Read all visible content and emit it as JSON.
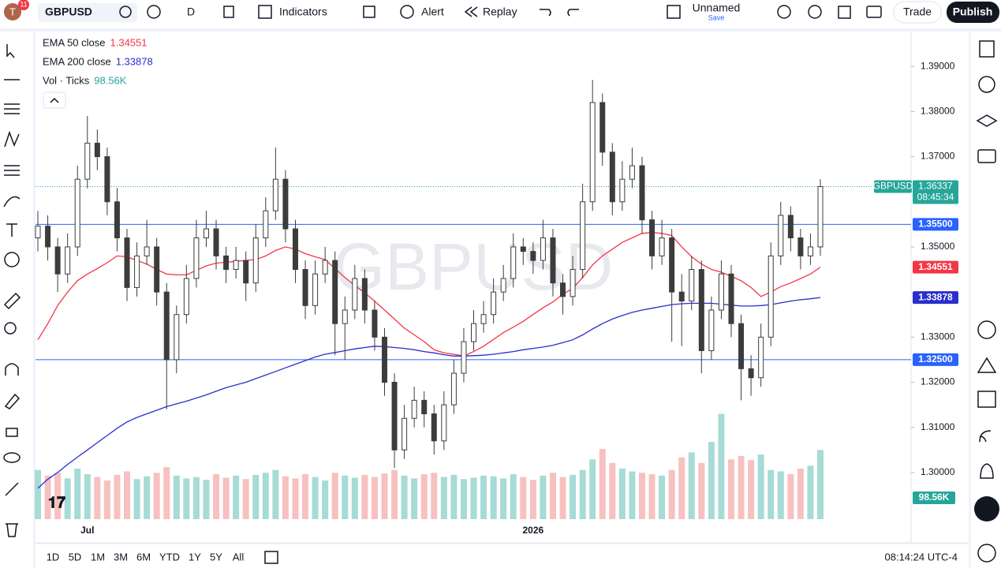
{
  "toolbar": {
    "avatar": "T",
    "badge": "11",
    "symbol": "GBPUSD",
    "interval": "D",
    "indicators": "Indicators",
    "alert": "Alert",
    "replay": "Replay",
    "layout_name": "Unnamed",
    "layout_status": "Save",
    "trade": "Trade",
    "publish": "Publish"
  },
  "bottom_bar": {
    "ranges": [
      "1D",
      "5D",
      "1M",
      "3M",
      "6M",
      "YTD",
      "1Y",
      "5Y",
      "All"
    ],
    "clock": "08:14:24 UTC-4"
  },
  "chart_data": {
    "type": "candlestick",
    "watermark": "GBPUSD",
    "up_color": "#ffffff",
    "down_color": "#3c3c3c",
    "wick_color": "#3c3c3c",
    "categories": [
      null,
      null,
      null,
      null,
      null,
      "Jul",
      null,
      null,
      null,
      null,
      null,
      null,
      null,
      null,
      null,
      null,
      null,
      null,
      null,
      null,
      null,
      null,
      null,
      null,
      null,
      null,
      null,
      null,
      null,
      null,
      null,
      null,
      null,
      null,
      null,
      null,
      null,
      null,
      null,
      null,
      null,
      null,
      null,
      null,
      null,
      null,
      null,
      null,
      null,
      null,
      "2026",
      null,
      null,
      null,
      null,
      null,
      null,
      null,
      null,
      null,
      null,
      null,
      null,
      null,
      null,
      null,
      null,
      null,
      null,
      null,
      null,
      null,
      null,
      null,
      null,
      null,
      null,
      null,
      null,
      null
    ],
    "open": [
      1.352,
      1.3546,
      1.35,
      1.344,
      1.35,
      1.365,
      1.373,
      1.37,
      1.36,
      1.352,
      1.341,
      1.348,
      1.35,
      1.34,
      1.325,
      1.335,
      1.343,
      1.352,
      1.354,
      1.348,
      1.345,
      1.347,
      1.342,
      1.352,
      1.358,
      1.365,
      1.354,
      1.345,
      1.337,
      1.344,
      1.347,
      1.333,
      1.336,
      1.343,
      1.336,
      1.33,
      1.32,
      1.305,
      1.312,
      1.316,
      1.313,
      1.307,
      1.315,
      1.322,
      1.329,
      1.333,
      1.335,
      1.34,
      1.343,
      1.35,
      1.349,
      1.347,
      1.352,
      1.342,
      1.339,
      1.345,
      1.36,
      1.382,
      1.371,
      1.36,
      1.365,
      1.368,
      1.356,
      1.348,
      1.352,
      1.34,
      1.338,
      1.345,
      1.327,
      1.336,
      1.344,
      1.333,
      1.323,
      1.321,
      1.33,
      1.348,
      1.357,
      1.352,
      1.348,
      1.35
    ],
    "high": [
      1.358,
      1.357,
      1.352,
      1.353,
      1.368,
      1.379,
      1.376,
      1.372,
      1.363,
      1.354,
      1.351,
      1.356,
      1.352,
      1.342,
      1.337,
      1.346,
      1.356,
      1.358,
      1.356,
      1.35,
      1.35,
      1.349,
      1.355,
      1.361,
      1.372,
      1.367,
      1.356,
      1.347,
      1.347,
      1.35,
      1.349,
      1.339,
      1.346,
      1.345,
      1.338,
      1.332,
      1.322,
      1.315,
      1.319,
      1.318,
      1.315,
      1.318,
      1.325,
      1.332,
      1.336,
      1.338,
      1.343,
      1.346,
      1.353,
      1.352,
      1.351,
      1.356,
      1.354,
      1.344,
      1.348,
      1.364,
      1.387,
      1.384,
      1.373,
      1.369,
      1.372,
      1.37,
      1.358,
      1.356,
      1.354,
      1.344,
      1.348,
      1.347,
      1.339,
      1.347,
      1.346,
      1.335,
      1.326,
      1.333,
      1.351,
      1.36,
      1.359,
      1.354,
      1.353,
      1.365
    ],
    "low": [
      1.349,
      1.347,
      1.34,
      1.342,
      1.348,
      1.363,
      1.367,
      1.357,
      1.349,
      1.338,
      1.339,
      1.346,
      1.337,
      1.314,
      1.322,
      1.333,
      1.341,
      1.35,
      1.345,
      1.342,
      1.343,
      1.338,
      1.34,
      1.35,
      1.356,
      1.351,
      1.342,
      1.334,
      1.335,
      1.342,
      1.326,
      1.325,
      1.334,
      1.333,
      1.327,
      1.317,
      1.301,
      1.303,
      1.31,
      1.31,
      1.304,
      1.305,
      1.313,
      1.32,
      1.327,
      1.331,
      1.333,
      1.338,
      1.341,
      1.346,
      1.344,
      1.345,
      1.339,
      1.335,
      1.337,
      1.343,
      1.358,
      1.368,
      1.357,
      1.358,
      1.363,
      1.353,
      1.345,
      1.346,
      1.329,
      1.328,
      1.336,
      1.322,
      1.325,
      1.334,
      1.33,
      1.316,
      1.317,
      1.319,
      1.328,
      1.346,
      1.349,
      1.345,
      1.346,
      1.348
    ],
    "close": [
      1.3546,
      1.35,
      1.344,
      1.35,
      1.365,
      1.373,
      1.37,
      1.36,
      1.352,
      1.341,
      1.348,
      1.35,
      1.34,
      1.325,
      1.335,
      1.343,
      1.352,
      1.354,
      1.348,
      1.345,
      1.347,
      1.342,
      1.352,
      1.358,
      1.365,
      1.354,
      1.345,
      1.337,
      1.344,
      1.347,
      1.333,
      1.336,
      1.343,
      1.336,
      1.33,
      1.32,
      1.305,
      1.312,
      1.316,
      1.313,
      1.307,
      1.315,
      1.322,
      1.329,
      1.333,
      1.335,
      1.34,
      1.343,
      1.35,
      1.349,
      1.347,
      1.352,
      1.342,
      1.339,
      1.345,
      1.36,
      1.382,
      1.371,
      1.36,
      1.365,
      1.368,
      1.356,
      1.348,
      1.352,
      1.34,
      1.338,
      1.345,
      1.327,
      1.336,
      1.344,
      1.333,
      1.323,
      1.321,
      1.33,
      1.348,
      1.357,
      1.352,
      1.348,
      1.35,
      1.36337
    ],
    "volume": [
      70,
      62,
      66,
      58,
      72,
      64,
      60,
      55,
      63,
      68,
      57,
      61,
      66,
      74,
      62,
      58,
      60,
      56,
      64,
      59,
      62,
      57,
      63,
      66,
      70,
      61,
      58,
      64,
      60,
      55,
      66,
      62,
      59,
      63,
      60,
      65,
      70,
      62,
      58,
      64,
      66,
      60,
      63,
      57,
      59,
      62,
      61,
      58,
      64,
      60,
      56,
      62,
      66,
      60,
      63,
      70,
      85,
      100,
      80,
      72,
      68,
      66,
      64,
      62,
      70,
      88,
      95,
      80,
      110,
      150,
      85,
      90,
      84,
      92,
      70,
      68,
      64,
      72,
      76,
      98.56
    ],
    "vlim": [
      0,
      200
    ],
    "volume_legend": {
      "name": "Vol · Ticks",
      "last": {
        "value": 98.56,
        "label": "98.56K"
      }
    },
    "series": [
      {
        "name": "EMA 50 close",
        "color": "#f23645",
        "last": {
          "value": 1.34551,
          "label": "1.34551"
        },
        "values": [
          1.3294,
          1.333,
          1.337,
          1.34,
          1.3425,
          1.344,
          1.3452,
          1.3465,
          1.348,
          1.3478,
          1.347,
          1.3462,
          1.345,
          1.344,
          1.3438,
          1.3438,
          1.3448,
          1.3458,
          1.3464,
          1.3466,
          1.3468,
          1.347,
          1.3472,
          1.348,
          1.3492,
          1.35,
          1.3495,
          1.3485,
          1.3478,
          1.3472,
          1.3452,
          1.3432,
          1.3415,
          1.3398,
          1.338,
          1.336,
          1.334,
          1.332,
          1.3305,
          1.329,
          1.3272,
          1.3265,
          1.3262,
          1.3258,
          1.3268,
          1.328,
          1.3295,
          1.331,
          1.3322,
          1.3335,
          1.335,
          1.3365,
          1.3378,
          1.3395,
          1.3408,
          1.3432,
          1.346,
          1.348,
          1.3495,
          1.351,
          1.352,
          1.353,
          1.3532,
          1.353,
          1.3525,
          1.35,
          1.3478,
          1.3462,
          1.345,
          1.3444,
          1.3435,
          1.3425,
          1.341,
          1.339,
          1.34,
          1.3412,
          1.342,
          1.343,
          1.344,
          1.34551
        ]
      },
      {
        "name": "EMA 200 close",
        "color": "#2a2ecd",
        "last": {
          "value": 1.33878,
          "label": "1.33878"
        },
        "values": [
          1.2965,
          1.2985,
          1.3,
          1.3018,
          1.3034,
          1.305,
          1.3066,
          1.3082,
          1.3098,
          1.3112,
          1.3122,
          1.313,
          1.3138,
          1.3146,
          1.3152,
          1.3158,
          1.3165,
          1.3172,
          1.318,
          1.3188,
          1.3194,
          1.32,
          1.3208,
          1.3216,
          1.3224,
          1.3232,
          1.324,
          1.3248,
          1.3256,
          1.3262,
          1.3266,
          1.327,
          1.3274,
          1.3277,
          1.328,
          1.3279,
          1.3277,
          1.3275,
          1.3272,
          1.3268,
          1.3265,
          1.3261,
          1.3258,
          1.3258,
          1.3259,
          1.326,
          1.3262,
          1.3265,
          1.3268,
          1.3272,
          1.3275,
          1.3278,
          1.3282,
          1.3288,
          1.3294,
          1.3305,
          1.3318,
          1.333,
          1.334,
          1.3348,
          1.3355,
          1.336,
          1.3364,
          1.3368,
          1.3372,
          1.3374,
          1.3375,
          1.3375,
          1.3375,
          1.3373,
          1.3371,
          1.3369,
          1.3369,
          1.337,
          1.3372,
          1.3376,
          1.338,
          1.3383,
          1.3385,
          1.33878
        ]
      }
    ],
    "levels": [
      {
        "value": 1.355,
        "label": "1.35500",
        "color": "#2962ff"
      },
      {
        "value": 1.325,
        "label": "1.32500",
        "color": "#2962ff"
      }
    ],
    "last_price": {
      "symbol": "GBPUSD",
      "value": 1.36337,
      "countdown": "08:45:34",
      "color": "#26a69a"
    },
    "ylim": [
      1.28966,
      1.39773
    ],
    "yticks": [
      {
        "value": 1.3,
        "label": "1.30000"
      },
      {
        "value": 1.31,
        "label": "1.31000"
      },
      {
        "value": 1.32,
        "label": "1.32000"
      },
      {
        "value": 1.33,
        "label": "1.33000"
      },
      {
        "value": 1.35,
        "label": "1.35000"
      },
      {
        "value": 1.37,
        "label": "1.37000"
      },
      {
        "value": 1.38,
        "label": "1.38000"
      },
      {
        "value": 1.39,
        "label": "1.39000"
      }
    ]
  }
}
